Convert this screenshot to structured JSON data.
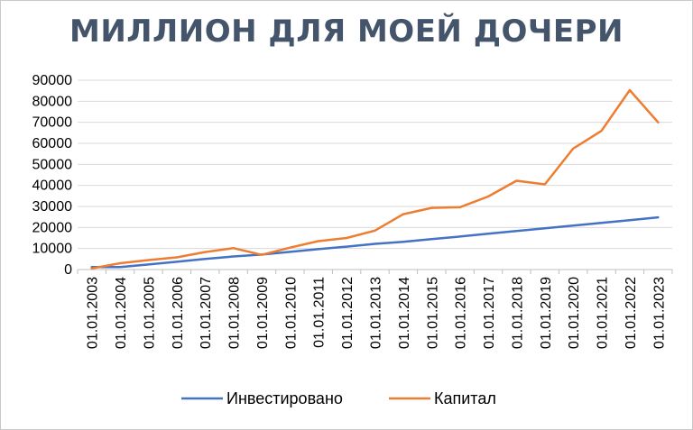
{
  "chart_data": {
    "type": "line",
    "title": "МИЛЛИОН ДЛЯ МОЕЙ ДОЧЕРИ",
    "xlabel": "",
    "ylabel": "",
    "ylim": [
      0,
      90000
    ],
    "y_ticks": [
      "0",
      "10000",
      "20000",
      "30000",
      "40000",
      "50000",
      "60000",
      "70000",
      "80000",
      "90000"
    ],
    "y_tick_values": [
      0,
      10000,
      20000,
      30000,
      40000,
      50000,
      60000,
      70000,
      80000,
      90000
    ],
    "categories": [
      "01.01.2003",
      "01.01.2004",
      "01.01.2005",
      "01.01.2006",
      "01.01.2007",
      "01.01.2008",
      "01.01.2009",
      "01.01.2010",
      "01.01.2011",
      "01.01.2012",
      "01.01.2013",
      "01.01.2014",
      "01.01.2015",
      "01.01.2016",
      "01.01.2017",
      "01.01.2018",
      "01.01.2019",
      "01.01.2020",
      "01.01.2021",
      "01.01.2022",
      "01.01.2023"
    ],
    "grid": true,
    "legend_position": "bottom",
    "series": [
      {
        "name": "Инвестировано",
        "color": "#4472c4",
        "values": [
          1200,
          1200,
          2400,
          3700,
          5000,
          6200,
          7100,
          8400,
          9700,
          10900,
          12200,
          13200,
          14500,
          15700,
          17000,
          18300,
          19600,
          20900,
          22200,
          23500,
          24800
        ]
      },
      {
        "name": "Капитал",
        "color": "#ed7d31",
        "values": [
          500,
          3000,
          4500,
          5800,
          8300,
          10200,
          7000,
          10400,
          13500,
          15000,
          18500,
          26300,
          29300,
          29600,
          34700,
          42200,
          40500,
          57500,
          65900,
          85300,
          70000
        ]
      }
    ]
  }
}
